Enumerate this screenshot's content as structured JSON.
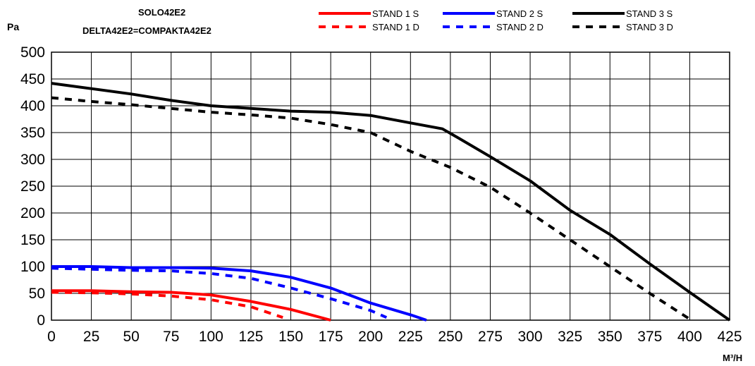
{
  "header": {
    "title_line1": "SOLO42E2",
    "title_line2": "DELTA42E2=COMPAKTA42E2"
  },
  "chart_data": {
    "type": "line",
    "ylabel": "Pa",
    "xlabel": "M³/H",
    "xlim": [
      0,
      425
    ],
    "ylim": [
      0,
      500
    ],
    "xticks": [
      0,
      25,
      50,
      75,
      100,
      125,
      150,
      175,
      200,
      225,
      250,
      275,
      300,
      325,
      350,
      375,
      400,
      425
    ],
    "yticks": [
      0,
      50,
      100,
      150,
      200,
      250,
      300,
      350,
      400,
      450,
      500
    ],
    "grid": true,
    "legend_position": "top-right",
    "series": [
      {
        "name": "STAND 1 S",
        "color": "#ff0000",
        "style": "solid",
        "x": [
          0,
          25,
          50,
          75,
          100,
          125,
          150,
          175
        ],
        "y": [
          55,
          55,
          53,
          52,
          47,
          35,
          20,
          0
        ]
      },
      {
        "name": "STAND 1 D",
        "color": "#ff0000",
        "style": "dashed",
        "x": [
          0,
          25,
          50,
          75,
          100,
          125,
          145
        ],
        "y": [
          52,
          51,
          49,
          45,
          38,
          25,
          5
        ]
      },
      {
        "name": "STAND 2 S",
        "color": "#0000ff",
        "style": "solid",
        "x": [
          0,
          25,
          50,
          75,
          100,
          125,
          150,
          175,
          200,
          225,
          235
        ],
        "y": [
          100,
          100,
          98,
          98,
          97,
          92,
          80,
          60,
          32,
          10,
          0
        ]
      },
      {
        "name": "STAND 2 D",
        "color": "#0000ff",
        "style": "dashed",
        "x": [
          0,
          25,
          50,
          75,
          100,
          125,
          150,
          175,
          200,
          210
        ],
        "y": [
          97,
          95,
          93,
          92,
          87,
          78,
          60,
          40,
          18,
          5
        ]
      },
      {
        "name": "STAND 3 S",
        "color": "#000000",
        "style": "solid",
        "x": [
          0,
          25,
          50,
          75,
          100,
          125,
          150,
          175,
          200,
          225,
          245,
          255,
          275,
          300,
          325,
          350,
          375,
          400,
          425
        ],
        "y": [
          442,
          432,
          422,
          410,
          400,
          395,
          390,
          388,
          382,
          368,
          357,
          340,
          305,
          260,
          205,
          160,
          105,
          52,
          0
        ]
      },
      {
        "name": "STAND 3 D",
        "color": "#000000",
        "style": "dashed",
        "x": [
          0,
          25,
          50,
          75,
          100,
          125,
          150,
          175,
          200,
          225,
          250,
          275,
          300,
          325,
          350,
          375,
          400
        ],
        "y": [
          415,
          408,
          402,
          395,
          388,
          383,
          377,
          365,
          350,
          315,
          285,
          248,
          200,
          150,
          100,
          50,
          2
        ]
      }
    ]
  }
}
